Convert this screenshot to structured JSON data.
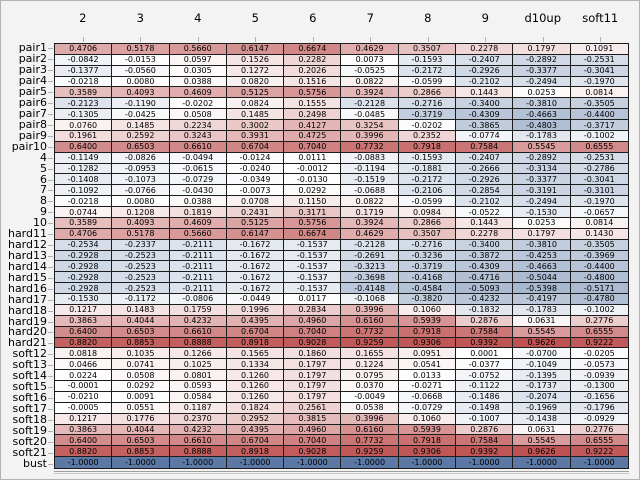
{
  "chart_data": {
    "type": "heatmap",
    "title": "",
    "legend": "none",
    "grid": true,
    "cell_text_format": "%.4f",
    "x_axis": {
      "position": "top",
      "tick_labels": [
        "2",
        "3",
        "4",
        "5",
        "6",
        "7",
        "8",
        "9",
        "d10up",
        "soft11"
      ]
    },
    "y_axis": {
      "position": "left",
      "tick_labels": [
        "pair1",
        "pair2",
        "pair3",
        "pair4",
        "pair5",
        "pair6",
        "pair7",
        "pair8",
        "pair9",
        "pair10",
        "4",
        "5",
        "6",
        "7",
        "8",
        "9",
        "10",
        "hard11",
        "hard12",
        "hard13",
        "hard14",
        "hard15",
        "hard16",
        "hard17",
        "hard18",
        "hard19",
        "hard20",
        "hard21",
        "soft12",
        "soft13",
        "soft14",
        "soft15",
        "soft16",
        "soft17",
        "soft18",
        "soft19",
        "soft20",
        "soft21",
        "bust"
      ]
    },
    "values": [
      [
        0.4706,
        0.5178,
        0.566,
        0.6147,
        0.6674,
        0.4629,
        0.3507,
        0.2278,
        0.1797,
        0.1091
      ],
      [
        -0.0842,
        -0.0153,
        0.0597,
        0.1526,
        0.2282,
        0.0073,
        -0.1593,
        -0.2407,
        -0.2892,
        -0.2531
      ],
      [
        -0.1377,
        -0.056,
        0.0305,
        0.1272,
        0.2026,
        -0.0525,
        -0.2172,
        -0.2926,
        -0.3377,
        -0.3041
      ],
      [
        -0.0218,
        0.008,
        0.0388,
        0.082,
        0.1516,
        0.0822,
        -0.0599,
        -0.2102,
        -0.2494,
        -0.197
      ],
      [
        0.3589,
        0.4093,
        0.4609,
        0.5125,
        0.5756,
        0.3924,
        0.2866,
        0.1443,
        0.0253,
        0.0814
      ],
      [
        -0.2123,
        -0.119,
        -0.0202,
        0.0824,
        0.1555,
        -0.2128,
        -0.2716,
        -0.34,
        -0.381,
        -0.3505
      ],
      [
        -0.1305,
        -0.0425,
        0.0508,
        0.1485,
        0.2498,
        -0.0485,
        -0.3719,
        -0.4309,
        -0.4663,
        -0.44
      ],
      [
        0.076,
        0.1485,
        0.2234,
        0.3002,
        0.4127,
        0.3254,
        -0.0202,
        -0.3865,
        -0.4803,
        -0.3717
      ],
      [
        0.1961,
        0.2592,
        0.3243,
        0.3931,
        0.4725,
        0.3996,
        0.2352,
        -0.0774,
        -0.1783,
        -0.1002
      ],
      [
        0.64,
        0.6503,
        0.661,
        0.6704,
        0.704,
        0.7732,
        0.7918,
        0.7584,
        0.5545,
        0.6555
      ],
      [
        -0.1149,
        -0.0826,
        -0.0494,
        -0.0124,
        0.0111,
        -0.0883,
        -0.1593,
        -0.2407,
        -0.2892,
        -0.2531
      ],
      [
        -0.1282,
        -0.0953,
        -0.0615,
        -0.024,
        -0.0012,
        -0.1194,
        -0.1881,
        -0.2666,
        -0.3134,
        -0.2786
      ],
      [
        -0.1408,
        -0.1073,
        -0.0729,
        -0.0349,
        -0.013,
        -0.1519,
        -0.2172,
        -0.2926,
        -0.3377,
        -0.3041
      ],
      [
        -0.1092,
        -0.0766,
        -0.043,
        -0.0073,
        0.0292,
        -0.0688,
        -0.2106,
        -0.2854,
        -0.3191,
        -0.3101
      ],
      [
        -0.0218,
        0.008,
        0.0388,
        0.0708,
        0.115,
        0.0822,
        -0.0599,
        -0.2102,
        -0.2494,
        -0.197
      ],
      [
        0.0744,
        0.1208,
        0.1819,
        0.2431,
        0.3171,
        0.1719,
        0.0984,
        -0.0522,
        -0.153,
        -0.0657
      ],
      [
        0.3589,
        0.4093,
        0.4609,
        0.5125,
        0.5756,
        0.3924,
        0.2866,
        0.1443,
        0.0253,
        0.0814
      ],
      [
        0.4706,
        0.5178,
        0.566,
        0.6147,
        0.6674,
        0.4629,
        0.3507,
        0.2278,
        0.1797,
        0.143
      ],
      [
        -0.2534,
        -0.2337,
        -0.2111,
        -0.1672,
        -0.1537,
        -0.2128,
        -0.2716,
        -0.34,
        -0.381,
        -0.3505
      ],
      [
        -0.2928,
        -0.2523,
        -0.2111,
        -0.1672,
        -0.1537,
        -0.2691,
        -0.3236,
        -0.3872,
        -0.4253,
        -0.3969
      ],
      [
        -0.2928,
        -0.2523,
        -0.2111,
        -0.1672,
        -0.1537,
        -0.3213,
        -0.3719,
        -0.4309,
        -0.4663,
        -0.44
      ],
      [
        -0.2928,
        -0.2523,
        -0.2111,
        -0.1672,
        -0.1537,
        -0.3698,
        -0.4168,
        -0.4716,
        -0.5044,
        -0.48
      ],
      [
        -0.2928,
        -0.2523,
        -0.2111,
        -0.1672,
        -0.1537,
        -0.4148,
        -0.4584,
        -0.5093,
        -0.5398,
        -0.5171
      ],
      [
        -0.153,
        -0.1172,
        -0.0806,
        -0.0449,
        0.0117,
        -0.1068,
        -0.382,
        -0.4232,
        -0.4197,
        -0.478
      ],
      [
        0.1217,
        0.1483,
        0.1759,
        0.1996,
        0.2834,
        0.3996,
        0.106,
        -0.1832,
        -0.1783,
        -0.1002
      ],
      [
        0.3863,
        0.4044,
        0.4232,
        0.4395,
        0.496,
        0.616,
        0.5939,
        0.2876,
        0.0631,
        0.2776
      ],
      [
        0.64,
        0.6503,
        0.661,
        0.6704,
        0.704,
        0.7732,
        0.7918,
        0.7584,
        0.5545,
        0.6555
      ],
      [
        0.882,
        0.8853,
        0.8888,
        0.8918,
        0.9028,
        0.9259,
        0.9306,
        0.9392,
        0.9626,
        0.9222
      ],
      [
        0.0818,
        0.1035,
        0.1266,
        0.1565,
        0.186,
        0.1655,
        0.0951,
        0.0001,
        -0.07,
        -0.0205
      ],
      [
        0.0466,
        0.0741,
        0.1025,
        0.1334,
        0.1797,
        0.1224,
        0.0541,
        -0.0377,
        -0.1049,
        -0.0573
      ],
      [
        0.0224,
        0.0508,
        0.0801,
        0.126,
        0.1797,
        0.0795,
        0.0133,
        -0.0752,
        -0.1395,
        -0.0939
      ],
      [
        -0.0001,
        0.0292,
        0.0593,
        0.126,
        0.1797,
        0.037,
        -0.0271,
        -0.1122,
        -0.1737,
        -0.13
      ],
      [
        -0.021,
        0.0091,
        0.0584,
        0.126,
        0.1797,
        -0.0049,
        -0.0668,
        -0.1486,
        -0.2074,
        -0.1656
      ],
      [
        -0.0005,
        0.0551,
        0.1187,
        0.1824,
        0.2561,
        0.0538,
        -0.0729,
        -0.1498,
        -0.1969,
        -0.1796
      ],
      [
        0.1217,
        0.1776,
        0.237,
        0.2952,
        0.3815,
        0.3996,
        0.106,
        -0.1007,
        -0.1438,
        -0.0929
      ],
      [
        0.3863,
        0.4044,
        0.4232,
        0.4395,
        0.496,
        0.616,
        0.5939,
        0.2876,
        0.0631,
        0.2776
      ],
      [
        0.64,
        0.6503,
        0.661,
        0.6704,
        0.704,
        0.7732,
        0.7918,
        0.7584,
        0.5545,
        0.6555
      ],
      [
        0.882,
        0.8853,
        0.8888,
        0.8918,
        0.9028,
        0.9259,
        0.9306,
        0.9392,
        0.9626,
        0.9222
      ],
      [
        -1.0,
        -1.0,
        -1.0,
        -1.0,
        -1.0,
        -1.0,
        -1.0,
        -1.0,
        -1.0,
        -1.0
      ]
    ],
    "colorscale": {
      "domain": [
        -1,
        0,
        1
      ],
      "colors": [
        "#5c79a5",
        "#ffffff",
        "#bb4b4b"
      ]
    }
  },
  "style": {
    "background": "#f3f3f3",
    "frame_border": "#b3b3b3",
    "cell_border": "#1c1c1c",
    "tick_color": "#b0b0b0",
    "text_color": "#000000",
    "double_rule_top": "#9e9e9e",
    "double_rule_bottom": "#c8c8c8"
  }
}
